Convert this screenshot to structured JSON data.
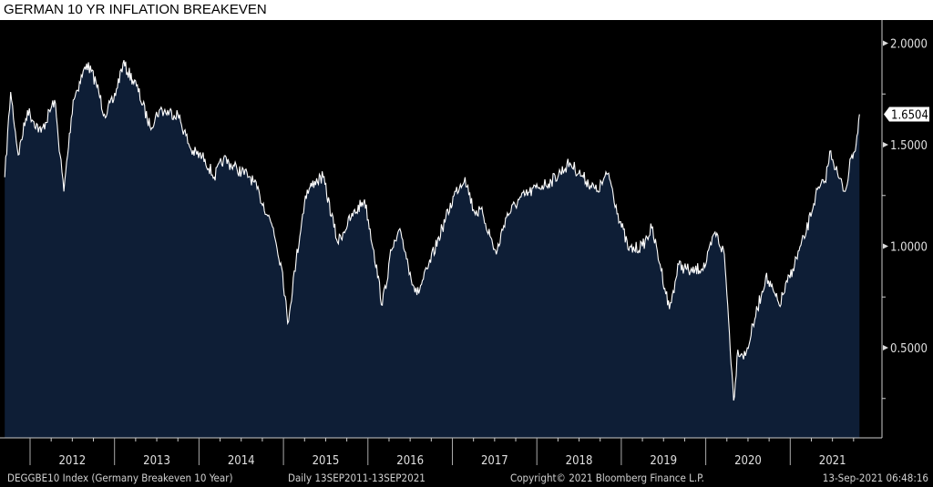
{
  "chart_data": {
    "type": "area",
    "title": "GERMAN 10 YR INFLATION BREAKEVEN",
    "xlabel": "",
    "ylabel": "",
    "ylim": [
      0.1,
      2.1
    ],
    "xlim": [
      2011.7,
      2021.86
    ],
    "y_ticks": [
      "2.0000",
      "1.5000",
      "1.0000",
      "0.5000"
    ],
    "y_tick_values": [
      2.0,
      1.5,
      1.0,
      0.5
    ],
    "x_tick_labels": [
      "2012",
      "2013",
      "2014",
      "2015",
      "2016",
      "2017",
      "2018",
      "2019",
      "2020",
      "2021"
    ],
    "last_value_label": "1.6504",
    "last_value": 1.6504,
    "colors": {
      "fill": "#0e1e36",
      "line": "#ffffff",
      "background": "#000000",
      "axis": "#cccccc"
    },
    "series": [
      {
        "name": "DEGGBE10 Index",
        "x": [
          2011.7,
          2011.77,
          2011.86,
          2011.97,
          2012.13,
          2012.29,
          2012.4,
          2012.51,
          2012.67,
          2012.78,
          2012.88,
          2012.99,
          2013.1,
          2013.26,
          2013.42,
          2013.53,
          2013.75,
          2013.91,
          2014.07,
          2014.18,
          2014.29,
          2014.45,
          2014.61,
          2014.72,
          2014.88,
          2014.99,
          2015.05,
          2015.15,
          2015.26,
          2015.37,
          2015.47,
          2015.64,
          2015.8,
          2015.96,
          2016.07,
          2016.17,
          2016.28,
          2016.39,
          2016.5,
          2016.58,
          2016.71,
          2016.88,
          2017.04,
          2017.15,
          2017.25,
          2017.36,
          2017.52,
          2017.63,
          2017.79,
          2018.01,
          2018.17,
          2018.39,
          2018.55,
          2018.71,
          2018.85,
          2018.96,
          2019.09,
          2019.25,
          2019.36,
          2019.46,
          2019.57,
          2019.68,
          2019.84,
          2020.0,
          2020.11,
          2020.22,
          2020.27,
          2020.33,
          2020.38,
          2020.47,
          2020.58,
          2020.71,
          2020.87,
          2021.03,
          2021.19,
          2021.3,
          2021.41,
          2021.48,
          2021.57,
          2021.65,
          2021.73,
          2021.78,
          2021.82
        ],
        "values": [
          1.34,
          1.76,
          1.45,
          1.67,
          1.56,
          1.72,
          1.27,
          1.72,
          1.9,
          1.81,
          1.65,
          1.72,
          1.9,
          1.79,
          1.59,
          1.67,
          1.65,
          1.47,
          1.43,
          1.34,
          1.43,
          1.38,
          1.34,
          1.25,
          1.09,
          0.87,
          0.62,
          0.93,
          1.25,
          1.32,
          1.34,
          1.02,
          1.14,
          1.23,
          0.98,
          0.71,
          0.98,
          1.07,
          0.87,
          0.76,
          0.89,
          1.09,
          1.27,
          1.34,
          1.18,
          1.16,
          0.96,
          1.14,
          1.23,
          1.29,
          1.32,
          1.41,
          1.34,
          1.27,
          1.36,
          1.16,
          0.98,
          1.0,
          1.09,
          0.91,
          0.69,
          0.91,
          0.87,
          0.91,
          1.07,
          0.96,
          0.64,
          0.24,
          0.49,
          0.46,
          0.64,
          0.85,
          0.71,
          0.89,
          1.07,
          1.25,
          1.32,
          1.47,
          1.34,
          1.27,
          1.45,
          1.5,
          1.65
        ]
      }
    ]
  },
  "footer": {
    "index": "DEGGBE10 Index (Germany Breakeven 10 Year)",
    "range": "Daily 13SEP2011-13SEP2021",
    "copyright": "Copyright© 2021 Bloomberg Finance L.P.",
    "timestamp": "13-Sep-2021 06:48:16"
  }
}
